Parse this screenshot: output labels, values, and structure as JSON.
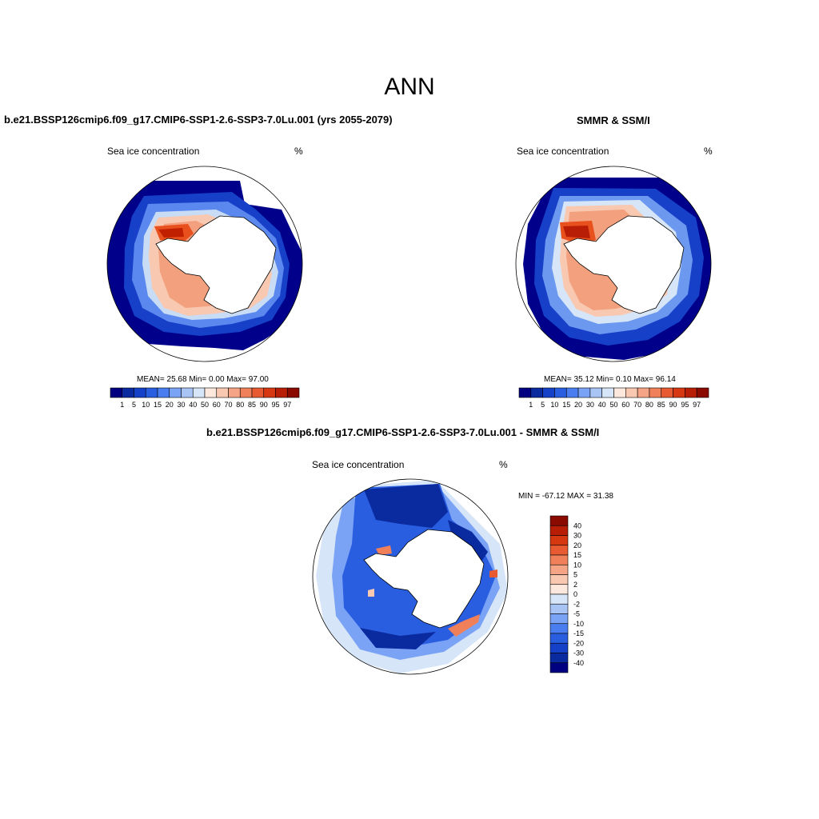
{
  "figure": {
    "title": "ANN"
  },
  "panels": [
    {
      "title": "b.e21.BSSP126cmip6.f09_g17.CMIP6-SSP1-2.6-SSP3-7.0Lu.001 (yrs 2055-2079)",
      "variable": "Sea ice concentration",
      "units": "%",
      "stats": "MEAN=  25.68  Min=   0.00  Max=  97.00"
    },
    {
      "title": "SMMR & SSM/I",
      "variable": "Sea ice concentration",
      "units": "%",
      "stats": "MEAN=  35.12  Min=   0.10  Max=  96.14"
    },
    {
      "title": "b.e21.BSSP126cmip6.f09_g17.CMIP6-SSP1-2.6-SSP3-7.0Lu.001 - SMMR & SSM/I",
      "variable": "Sea ice concentration",
      "units": "%",
      "stats": "MIN = -67.12 MAX =  31.38"
    }
  ],
  "chart_data": [
    {
      "type": "heatmap",
      "projection": "south polar stereographic",
      "title": "b.e21.BSSP126cmip6.f09_g17.CMIP6-SSP1-2.6-SSP3-7.0Lu.001 (yrs 2055-2079)",
      "variable": "Sea ice concentration",
      "units": "%",
      "mean": 25.68,
      "min": 0.0,
      "max": 97.0,
      "colorbar_levels": [
        "1",
        "5",
        "10",
        "15",
        "20",
        "30",
        "40",
        "50",
        "60",
        "70",
        "80",
        "85",
        "90",
        "95",
        "97"
      ],
      "colorbar_colors": [
        "#000080",
        "#0a2aa0",
        "#1540c8",
        "#2a5ee0",
        "#4a7ef0",
        "#7aa2f5",
        "#a8c4f5",
        "#d6e6f8",
        "#fde8de",
        "#f8c8b0",
        "#f5a585",
        "#f0805a",
        "#e85a32",
        "#d63812",
        "#b81e06",
        "#8a0a00"
      ]
    },
    {
      "type": "heatmap",
      "projection": "south polar stereographic",
      "title": "SMMR & SSM/I",
      "variable": "Sea ice concentration",
      "units": "%",
      "mean": 35.12,
      "min": 0.1,
      "max": 96.14,
      "colorbar_levels": [
        "1",
        "5",
        "10",
        "15",
        "20",
        "30",
        "40",
        "50",
        "60",
        "70",
        "80",
        "85",
        "90",
        "95",
        "97"
      ],
      "colorbar_colors": [
        "#000080",
        "#0a2aa0",
        "#1540c8",
        "#2a5ee0",
        "#4a7ef0",
        "#7aa2f5",
        "#a8c4f5",
        "#d6e6f8",
        "#fde8de",
        "#f8c8b0",
        "#f5a585",
        "#f0805a",
        "#e85a32",
        "#d63812",
        "#b81e06",
        "#8a0a00"
      ]
    },
    {
      "type": "heatmap",
      "projection": "south polar stereographic",
      "title": "b.e21.BSSP126cmip6.f09_g17.CMIP6-SSP1-2.6-SSP3-7.0Lu.001 - SMMR & SSM/I",
      "variable": "Sea ice concentration",
      "units": "%",
      "min": -67.12,
      "max": 31.38,
      "colorbar_levels": [
        "40",
        "30",
        "20",
        "15",
        "10",
        "5",
        "2",
        "0",
        "-2",
        "-5",
        "-10",
        "-15",
        "-20",
        "-30",
        "-40"
      ],
      "colorbar_colors": [
        "#8a0a00",
        "#b81e06",
        "#d63812",
        "#e85a32",
        "#f0805a",
        "#f5a585",
        "#f8c8b0",
        "#fde8de",
        "#d6e6f8",
        "#a8c4f5",
        "#7aa2f5",
        "#4a7ef0",
        "#2a5ee0",
        "#1540c8",
        "#0a2aa0",
        "#000080"
      ]
    }
  ]
}
